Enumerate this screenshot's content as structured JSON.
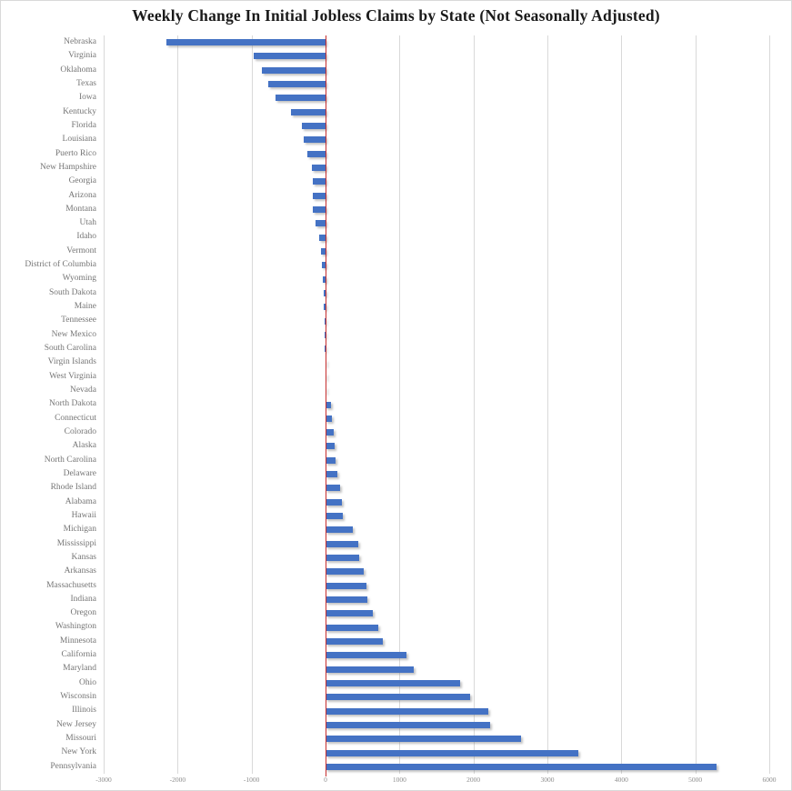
{
  "chart_data": {
    "type": "bar",
    "orientation": "horizontal",
    "title": "Weekly Change In Initial Jobless Claims by State (Not Seasonally Adjusted)",
    "categories": [
      "Nebraska",
      "Virginia",
      "Oklahoma",
      "Texas",
      "Iowa",
      "Kentucky",
      "Florida",
      "Louisiana",
      "Puerto Rico",
      "New Hampshire",
      "Georgia",
      "Arizona",
      "Montana",
      "Utah",
      "Idaho",
      "Vermont",
      "District of Columbia",
      "Wyoming",
      "South Dakota",
      "Maine",
      "Tennessee",
      "New Mexico",
      "South Carolina",
      "Virgin Islands",
      "West Virginia",
      "Nevada",
      "North Dakota",
      "Connecticut",
      "Colorado",
      "Alaska",
      "North Carolina",
      "Delaware",
      "Rhode Island",
      "Alabama",
      "Hawaii",
      "Michigan",
      "Mississippi",
      "Kansas",
      "Arkansas",
      "Massachusetts",
      "Indiana",
      "Oregon",
      "Washington",
      "Minnesota",
      "California",
      "Maryland",
      "Ohio",
      "Wisconsin",
      "Illinois",
      "New Jersey",
      "Missouri",
      "New York",
      "Pennsylvania"
    ],
    "values": [
      -2150,
      -975,
      -860,
      -780,
      -680,
      -465,
      -320,
      -295,
      -245,
      -190,
      -178,
      -172,
      -168,
      -140,
      -85,
      -65,
      -50,
      -32,
      -28,
      -20,
      -15,
      -12,
      -8,
      -5,
      -4,
      -2,
      75,
      85,
      110,
      120,
      140,
      160,
      200,
      220,
      230,
      370,
      440,
      460,
      520,
      550,
      560,
      635,
      710,
      780,
      1100,
      1190,
      1825,
      1950,
      2200,
      2225,
      2640,
      3420,
      5290
    ],
    "xlabel": "",
    "ylabel": "",
    "xlim": [
      -3000,
      6000
    ],
    "x_ticks": [
      -3000,
      -2000,
      -1000,
      0,
      1000,
      2000,
      3000,
      4000,
      5000,
      6000
    ],
    "x_tick_labels": [
      "-3000",
      "-2000",
      "-1000",
      "0",
      "1000",
      "2000",
      "3000",
      "4000",
      "5000",
      "6000"
    ],
    "grid": true,
    "legend": "none",
    "bar_color": "#4472C4",
    "zero_line_color": "#C62F2F",
    "gridline_color": "#D9D9D9"
  }
}
